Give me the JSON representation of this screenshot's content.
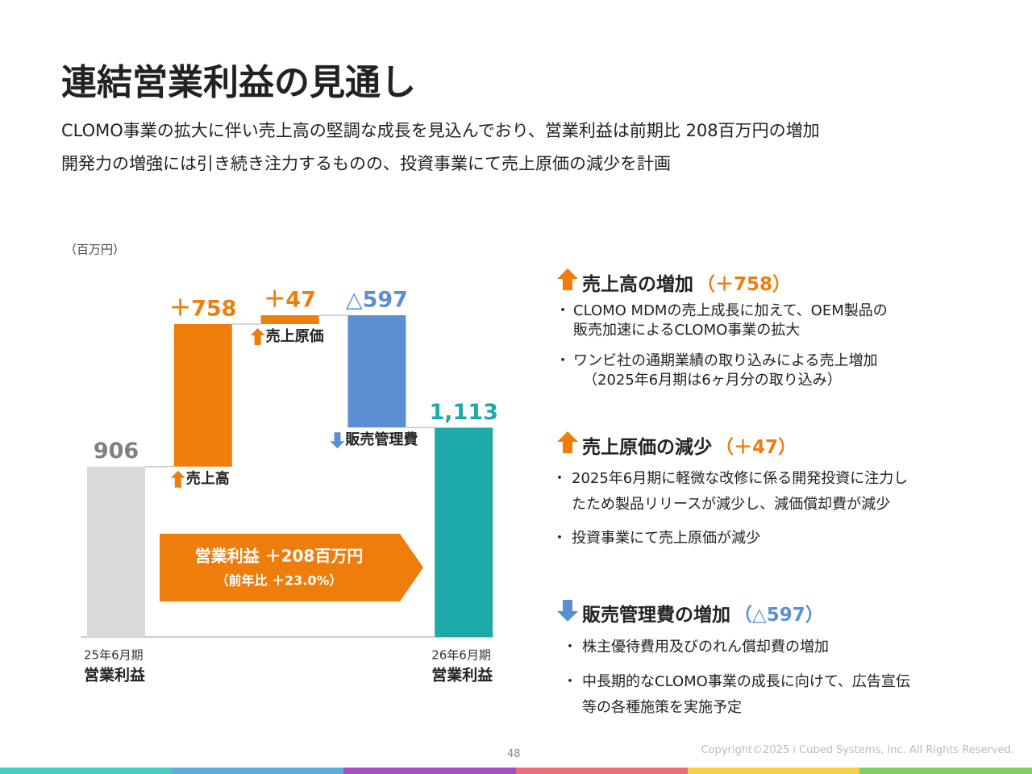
{
  "header": {
    "title": "連結営業利益の見通し",
    "lines": [
      "CLOMO事業の拡大に伴い売上高の堅調な成長を見込んでおり、営業利益は前期比 208百万円の増加",
      "開発力の増強には引き続き注力するものの、投資事業にて売上原価の減少を計画"
    ]
  },
  "chart_data": {
    "type": "waterfall",
    "unit": "（百万円）",
    "categories": [
      "営業利益",
      "売上高",
      "売上原価",
      "販売管理費",
      "営業利益"
    ],
    "periods": [
      "25年6月期",
      null,
      null,
      null,
      "26年6月期"
    ],
    "values": [
      906,
      758,
      47,
      -597,
      1113
    ],
    "value_labels": [
      "906",
      "＋758",
      "＋47",
      "△597",
      "1,113"
    ],
    "colors": [
      "#d9d9d9",
      "#ee7d0c",
      "#ee7d0c",
      "#5b8fd4",
      "#1ea9a9"
    ],
    "label_colors": [
      "#808080",
      "#ee7d0c",
      "#ee7d0c",
      "#5b8fd4",
      "#1ea9a9"
    ],
    "banner": {
      "title": "営業利益 ＋208百万円",
      "sub": "（前年比 ＋23.0%）"
    }
  },
  "sections": [
    {
      "title": "売上高の増加",
      "amount": "（＋758）",
      "bullets": [
        [
          "CLOMO MDMの売上成長に加えて、OEM製品の",
          "販売加速によるCLOMO事業の拡大"
        ],
        [
          "ワンビ社の通期業績の取り込みによる売上増加",
          "（2025年6月期は6ヶ月分の取り込み）"
        ]
      ]
    },
    {
      "title": "売上原価の減少",
      "amount": "（＋47）",
      "bullets": [
        [
          "2025年6月期に軽微な改修に係る開発投資に注力し",
          "たため製品リリースが減少し、減価償却費が減少"
        ],
        [
          "投資事業にて売上原価が減少"
        ]
      ]
    },
    {
      "title": "販売管理費の増加",
      "amount": "（△597）",
      "bullets": [
        [
          "株主優待費用及びのれん償却費の増加"
        ],
        [
          "中長期的なCLOMO事業の成長に向けて、広告宣伝",
          "等の各種施策を実施予定"
        ]
      ]
    }
  ],
  "footer": {
    "page": "48",
    "copyright": "Copyright©2025 i Cubed Systems, Inc. All Rights Reserved."
  }
}
